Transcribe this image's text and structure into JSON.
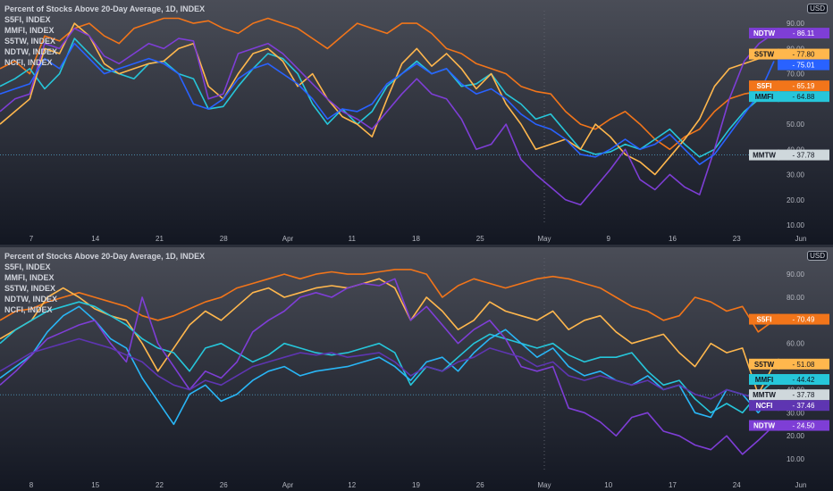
{
  "currency_label": "USD",
  "chart_data": [
    {
      "type": "line",
      "title": "Percent of Stocks Above 20-Day Average, 1D, INDEX",
      "ylim": [
        10,
        95
      ],
      "y_ticks": [
        10,
        20,
        30,
        40,
        50,
        60,
        70,
        80,
        90
      ],
      "x_tick_labels": [
        "7",
        "14",
        "21",
        "28",
        "Apr",
        "11",
        "18",
        "25",
        "May",
        "9",
        "16",
        "23",
        "Jun"
      ],
      "hline": 37.78,
      "series": [
        {
          "name": "S5FI, INDEX",
          "color": "#f2751a",
          "last": 65.19,
          "tag": "S5FI",
          "values": [
            72,
            75,
            70,
            85,
            83,
            88,
            90,
            85,
            82,
            88,
            90,
            92,
            92,
            90,
            91,
            88,
            86,
            90,
            92,
            90,
            88,
            84,
            80,
            85,
            90,
            88,
            86,
            90,
            90,
            86,
            80,
            78,
            74,
            72,
            70,
            65,
            63,
            62,
            55,
            50,
            48,
            52,
            55,
            50,
            44,
            40,
            45,
            48,
            55,
            60,
            62,
            63,
            65
          ]
        },
        {
          "name": "MMFI, INDEX",
          "color": "#26c6da",
          "last": 64.88,
          "tag": "MMFI",
          "values": [
            65,
            68,
            72,
            64,
            70,
            84,
            78,
            72,
            70,
            68,
            74,
            75,
            70,
            68,
            56,
            57,
            65,
            72,
            78,
            76,
            70,
            58,
            50,
            56,
            50,
            55,
            65,
            70,
            75,
            70,
            72,
            65,
            66,
            70,
            62,
            58,
            52,
            54,
            47,
            40,
            38,
            39,
            42,
            40,
            44,
            48,
            42,
            37,
            40,
            48,
            55,
            60,
            64
          ]
        },
        {
          "name": "S5TW, INDEX",
          "color": "#ffb74d",
          "last": 77.8,
          "tag": "S5TW",
          "values": [
            50,
            55,
            60,
            80,
            78,
            90,
            85,
            74,
            70,
            72,
            74,
            75,
            80,
            82,
            65,
            60,
            70,
            78,
            80,
            75,
            65,
            70,
            60,
            53,
            50,
            45,
            60,
            74,
            80,
            73,
            78,
            72,
            64,
            70,
            58,
            50,
            40,
            42,
            44,
            40,
            50,
            45,
            38,
            35,
            30,
            37,
            44,
            52,
            65,
            72,
            74,
            76,
            78
          ]
        },
        {
          "name": "NDTW, INDEX",
          "color": "#7e3ed6",
          "last": 86.11,
          "tag": "NDTW",
          "values": [
            55,
            60,
            62,
            82,
            80,
            88,
            85,
            77,
            74,
            78,
            82,
            80,
            84,
            83,
            60,
            62,
            78,
            80,
            82,
            78,
            72,
            66,
            60,
            55,
            52,
            48,
            55,
            62,
            68,
            62,
            60,
            52,
            40,
            42,
            50,
            36,
            30,
            25,
            20,
            18,
            25,
            32,
            40,
            28,
            24,
            30,
            25,
            22,
            40,
            60,
            75,
            82,
            86
          ]
        },
        {
          "name": "NCFI, INDEX",
          "color": "#2962ff",
          "last": 75.01,
          "tag": "",
          "values": [
            62,
            64,
            66,
            76,
            72,
            82,
            76,
            70,
            72,
            74,
            76,
            74,
            70,
            58,
            56,
            60,
            68,
            72,
            74,
            70,
            66,
            60,
            52,
            56,
            55,
            58,
            66,
            70,
            74,
            70,
            72,
            66,
            62,
            64,
            60,
            54,
            50,
            48,
            44,
            38,
            37,
            40,
            44,
            40,
            42,
            46,
            40,
            34,
            38,
            46,
            54,
            62,
            75
          ]
        }
      ],
      "tags": [
        {
          "label": "NDTW",
          "value": "86.11",
          "color": "#7e3ed6",
          "text": "#ffffff"
        },
        {
          "label": "S5TW",
          "value": "77.80",
          "color": "#ffb74d",
          "text": "#131722"
        },
        {
          "label": "",
          "value": "75.01",
          "color": "#2962ff",
          "text": "#ffffff"
        },
        {
          "label": "S5FI",
          "value": "65.19",
          "color": "#f2751a",
          "text": "#ffffff"
        },
        {
          "label": "MMFI",
          "value": "64.88",
          "color": "#26c6da",
          "text": "#131722"
        },
        {
          "label": "MMTW",
          "value": "37.78",
          "color": "#cfd8dc",
          "text": "#131722"
        }
      ]
    },
    {
      "type": "line",
      "title": "Percent of Stocks Above 20-Day Average, 1D, INDEX",
      "ylim": [
        5,
        97
      ],
      "y_ticks": [
        10,
        20,
        30,
        40,
        50,
        60,
        70,
        80,
        90
      ],
      "x_tick_labels": [
        "8",
        "15",
        "22",
        "26",
        "Apr",
        "12",
        "19",
        "26",
        "May",
        "10",
        "17",
        "24",
        "Jun"
      ],
      "hline": 37.78,
      "series": [
        {
          "name": "S5FI, INDEX",
          "color": "#f2751a",
          "last": 70.49,
          "tag": "S5FI",
          "values": [
            70,
            74,
            75,
            78,
            80,
            82,
            80,
            78,
            76,
            72,
            70,
            72,
            75,
            78,
            80,
            84,
            86,
            88,
            90,
            88,
            90,
            91,
            90,
            90,
            91,
            92,
            92,
            90,
            80,
            85,
            88,
            86,
            84,
            86,
            88,
            89,
            88,
            86,
            84,
            80,
            76,
            74,
            70,
            72,
            80,
            78,
            74,
            76,
            65,
            70
          ]
        },
        {
          "name": "S5TW, INDEX",
          "color": "#ffb74d",
          "last": 51.08,
          "tag": "S5TW",
          "values": [
            62,
            66,
            70,
            80,
            84,
            80,
            75,
            72,
            70,
            60,
            48,
            58,
            68,
            74,
            70,
            76,
            82,
            84,
            80,
            82,
            84,
            85,
            84,
            86,
            88,
            84,
            70,
            80,
            74,
            66,
            70,
            78,
            74,
            72,
            70,
            74,
            66,
            70,
            72,
            65,
            60,
            62,
            64,
            56,
            50,
            60,
            56,
            58,
            38,
            51
          ]
        },
        {
          "name": "MMFI, INDEX",
          "color": "#26c6da",
          "last": 44.42,
          "tag": "MMFI",
          "values": [
            60,
            66,
            70,
            74,
            76,
            78,
            76,
            72,
            68,
            62,
            58,
            56,
            48,
            58,
            60,
            56,
            52,
            55,
            60,
            58,
            56,
            55,
            56,
            58,
            60,
            56,
            42,
            50,
            48,
            54,
            60,
            64,
            62,
            60,
            58,
            60,
            55,
            52,
            54,
            54,
            56,
            48,
            42,
            44,
            36,
            30,
            34,
            30,
            38,
            44
          ]
        },
        {
          "name": "MMTW, INDEX",
          "color": "#29b6f6",
          "last": 37.78,
          "tag": "MMTW",
          "values": [
            45,
            50,
            55,
            65,
            72,
            76,
            70,
            62,
            58,
            45,
            35,
            25,
            38,
            42,
            35,
            38,
            44,
            48,
            50,
            46,
            48,
            49,
            50,
            52,
            54,
            50,
            44,
            52,
            54,
            48,
            56,
            62,
            66,
            60,
            54,
            58,
            50,
            46,
            48,
            44,
            42,
            46,
            40,
            42,
            30,
            28,
            40,
            38,
            30,
            37.78
          ]
        },
        {
          "name": "NDTW, INDEX",
          "color": "#7e3ed6",
          "last": 24.5,
          "tag": "NDTW",
          "values": [
            42,
            48,
            55,
            62,
            65,
            68,
            70,
            60,
            52,
            80,
            60,
            50,
            40,
            48,
            45,
            52,
            65,
            70,
            74,
            80,
            82,
            80,
            84,
            86,
            85,
            88,
            70,
            76,
            68,
            60,
            66,
            70,
            62,
            50,
            48,
            50,
            32,
            30,
            26,
            20,
            28,
            30,
            22,
            20,
            16,
            14,
            20,
            12,
            18,
            24.5
          ]
        },
        {
          "name": "NCFI, INDEX",
          "color": "#5e35b1",
          "last": 37.46,
          "tag": "NCFI",
          "values": [
            48,
            52,
            56,
            58,
            60,
            62,
            60,
            58,
            55,
            52,
            46,
            42,
            40,
            44,
            42,
            46,
            50,
            52,
            54,
            56,
            55,
            56,
            54,
            55,
            56,
            52,
            46,
            50,
            48,
            52,
            54,
            58,
            56,
            54,
            50,
            52,
            46,
            44,
            46,
            44,
            42,
            44,
            40,
            42,
            38,
            36,
            40,
            38,
            36,
            37.46
          ]
        }
      ],
      "tags": [
        {
          "label": "S5FI",
          "value": "70.49",
          "color": "#f2751a",
          "text": "#ffffff"
        },
        {
          "label": "S5TW",
          "value": "51.08",
          "color": "#ffb74d",
          "text": "#131722"
        },
        {
          "label": "MMFI",
          "value": "44.42",
          "color": "#26c6da",
          "text": "#131722"
        },
        {
          "label": "MMTW",
          "value": "37.78",
          "color": "#cfd8dc",
          "text": "#131722"
        },
        {
          "label": "NCFI",
          "value": "37.46",
          "color": "#5e35b1",
          "text": "#ffffff"
        },
        {
          "label": "NDTW",
          "value": "24.50",
          "color": "#7e3ed6",
          "text": "#ffffff"
        }
      ]
    }
  ],
  "legend_top": [
    "S5FI, INDEX",
    "MMFI, INDEX",
    "S5TW, INDEX",
    "NDTW, INDEX",
    "NCFI, INDEX"
  ],
  "legend_bottom": [
    "S5FI, INDEX",
    "MMFI, INDEX",
    "S5TW, INDEX",
    "NDTW, INDEX",
    "NCFI, INDEX"
  ]
}
